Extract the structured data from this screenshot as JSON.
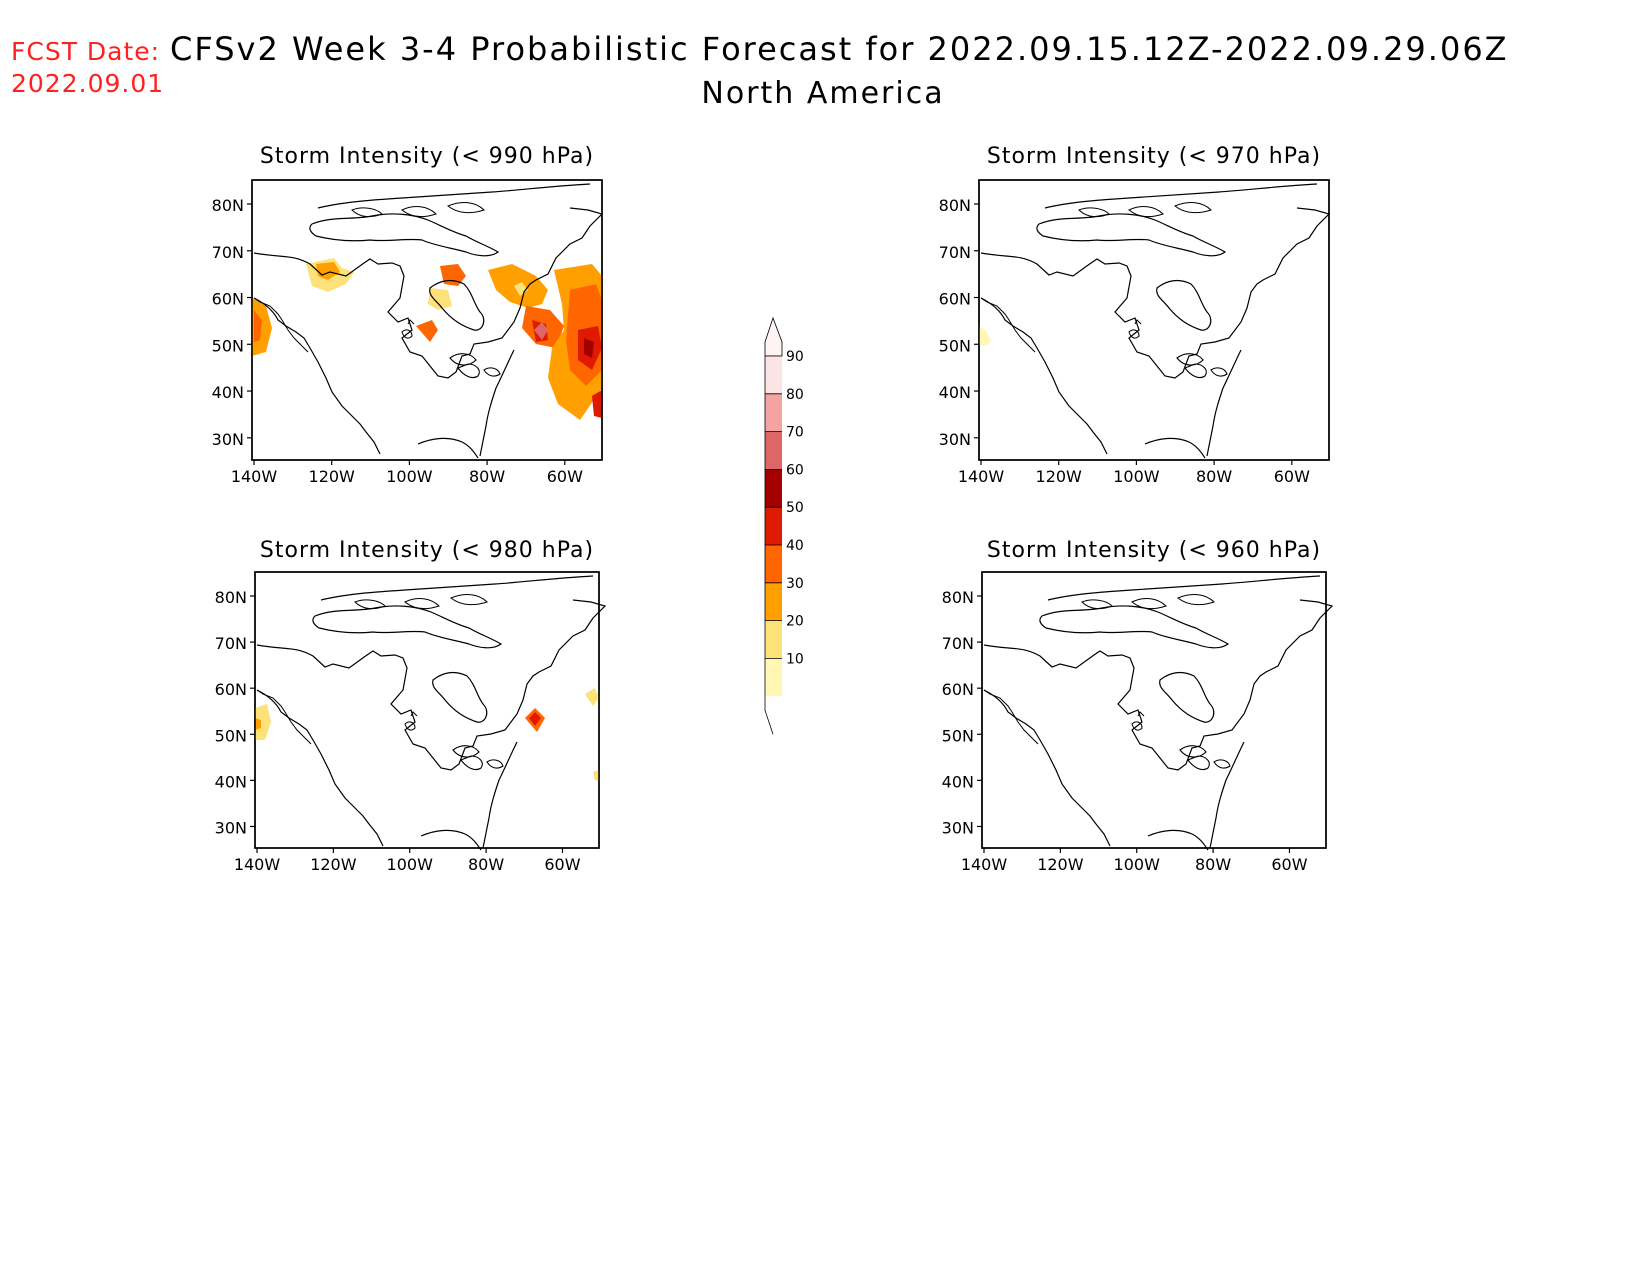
{
  "header": {
    "fcst_label": "FCST Date:",
    "fcst_date": "2022.09.01",
    "title": "CFSv2 Week 3-4 Probabilistic Forecast for 2022.09.15.12Z-2022.09.29.06Z",
    "region": "North America"
  },
  "axes": {
    "lat_ticks": [
      "80N",
      "70N",
      "60N",
      "50N",
      "40N",
      "30N"
    ],
    "lon_ticks": [
      "140W",
      "120W",
      "100W",
      "80W",
      "60W"
    ]
  },
  "colorbar": {
    "levels": [
      "90",
      "80",
      "70",
      "60",
      "50",
      "40",
      "30",
      "20",
      "10"
    ],
    "colors": [
      "#fde4e4",
      "#f4a3a3",
      "#dd6666",
      "#a50000",
      "#e01a00",
      "#ff6600",
      "#ff9f00",
      "#fde27a",
      "#fff7b3"
    ]
  },
  "panels": [
    {
      "title": "Storm Intensity (< 990 hPa)"
    },
    {
      "title": "Storm Intensity (< 970 hPa)"
    },
    {
      "title": "Storm Intensity (< 980 hPa)"
    },
    {
      "title": "Storm Intensity (< 960 hPa)"
    }
  ]
}
